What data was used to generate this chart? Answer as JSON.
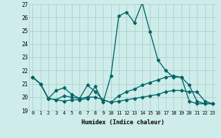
{
  "xlabel": "Humidex (Indice chaleur)",
  "background_color": "#ceecea",
  "grid_color": "#add4d0",
  "line_color": "#006666",
  "x": [
    0,
    1,
    2,
    3,
    4,
    5,
    6,
    7,
    8,
    9,
    10,
    11,
    12,
    13,
    14,
    15,
    16,
    17,
    18,
    19,
    20,
    21,
    22,
    23
  ],
  "series": [
    [
      21.5,
      21.0,
      19.9,
      19.8,
      19.7,
      19.8,
      19.8,
      19.9,
      20.8,
      19.6,
      21.6,
      26.1,
      26.4,
      25.6,
      27.1,
      24.9,
      22.8,
      22.0,
      21.5,
      21.5,
      19.7,
      19.5,
      19.5,
      19.5
    ],
    [
      21.5,
      21.0,
      19.9,
      20.5,
      20.7,
      20.2,
      19.9,
      20.9,
      20.4,
      19.8,
      19.6,
      20.1,
      20.4,
      20.6,
      20.9,
      21.1,
      21.3,
      21.5,
      21.6,
      21.5,
      20.9,
      19.7,
      19.5,
      19.5
    ],
    [
      21.5,
      21.0,
      19.9,
      19.8,
      20.1,
      20.0,
      19.9,
      20.0,
      20.0,
      19.8,
      19.6,
      19.7,
      19.8,
      19.9,
      20.0,
      20.1,
      20.2,
      20.4,
      20.5,
      20.5,
      20.4,
      20.4,
      19.7,
      19.5
    ]
  ],
  "ylim": [
    19,
    27
  ],
  "xlim": [
    -0.5,
    23.5
  ],
  "yticks": [
    19,
    20,
    21,
    22,
    23,
    24,
    25,
    26,
    27
  ],
  "xticks": [
    0,
    1,
    2,
    3,
    4,
    5,
    6,
    7,
    8,
    9,
    10,
    11,
    12,
    13,
    14,
    15,
    16,
    17,
    18,
    19,
    20,
    21,
    22,
    23
  ],
  "xtick_labels": [
    "0",
    "1",
    "2",
    "3",
    "4",
    "5",
    "6",
    "7",
    "8",
    "9",
    "10",
    "11",
    "12",
    "13",
    "14",
    "15",
    "16",
    "17",
    "18",
    "19",
    "20",
    "21",
    "22",
    "23"
  ],
  "marker": "D",
  "markersize": 2.2,
  "linewidth": 1.0
}
